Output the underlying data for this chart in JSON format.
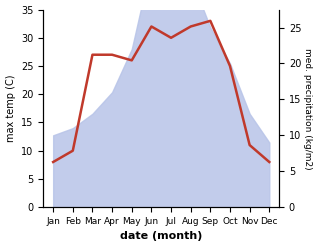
{
  "months": [
    "Jan",
    "Feb",
    "Mar",
    "Apr",
    "May",
    "Jun",
    "Jul",
    "Aug",
    "Sep",
    "Oct",
    "Nov",
    "Dec"
  ],
  "temperature": [
    8,
    10,
    27,
    27,
    26,
    32,
    30,
    32,
    33,
    25,
    11,
    8
  ],
  "precipitation": [
    10,
    11,
    13,
    16,
    22,
    34,
    29,
    32,
    25,
    20,
    13,
    9
  ],
  "temp_color": "#c0392b",
  "precip_fill_color": "#b8c4e8",
  "temp_ylim": [
    0,
    35
  ],
  "precip_ylim": [
    0,
    27.5
  ],
  "temp_yticks": [
    0,
    5,
    10,
    15,
    20,
    25,
    30,
    35
  ],
  "precip_yticks": [
    0,
    5,
    10,
    15,
    20,
    25
  ],
  "xlabel": "date (month)",
  "ylabel_left": "max temp (C)",
  "ylabel_right": "med. precipitation (kg/m2)",
  "temp_linewidth": 1.8,
  "background_color": "#ffffff"
}
